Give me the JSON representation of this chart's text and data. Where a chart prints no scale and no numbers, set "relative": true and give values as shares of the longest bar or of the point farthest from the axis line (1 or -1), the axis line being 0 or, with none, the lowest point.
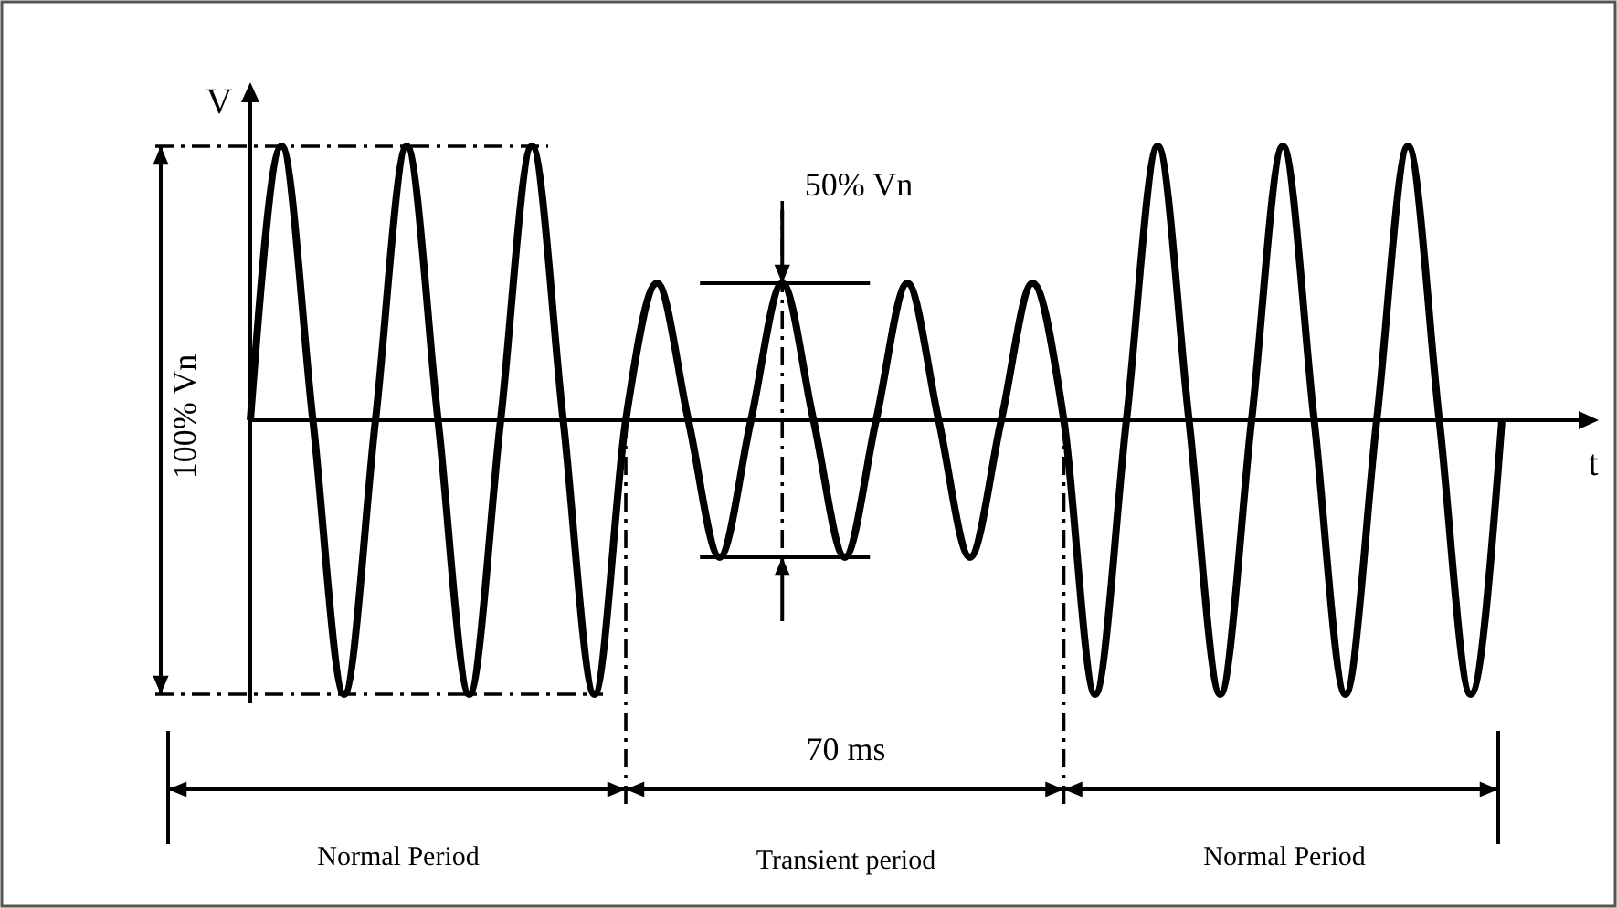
{
  "chart_data": {
    "type": "line",
    "xlabel": "t",
    "ylabel": "V",
    "relative": true,
    "color": "#000000",
    "categories": [
      null,
      null,
      null,
      null,
      null,
      null,
      null,
      null,
      null,
      null,
      null,
      null,
      null,
      null,
      null,
      null,
      null,
      null,
      null,
      null,
      null,
      null,
      null,
      null,
      null,
      null,
      null,
      null,
      null,
      null,
      null,
      null,
      null,
      null,
      null,
      null,
      null,
      null,
      null,
      null,
      null
    ],
    "values": [
      0,
      1,
      0,
      -1,
      0,
      1,
      0,
      -1,
      0,
      1,
      0,
      -1,
      0,
      0.5,
      0,
      -0.5,
      0,
      0.5,
      0,
      -0.5,
      0,
      0.5,
      0,
      -0.5,
      0,
      0.5,
      0,
      -1,
      0,
      1,
      0,
      -1,
      0,
      1,
      0,
      -1,
      0,
      1,
      0,
      -1,
      0
    ],
    "ref_lines": [
      {
        "axis": "y",
        "value": 0.5
      },
      {
        "axis": "y",
        "value": -0.5
      }
    ],
    "annotations": [
      "100% Vn",
      "50% Vn",
      "70 ms",
      "Normal Period",
      "Transient period",
      "Normal Period"
    ]
  }
}
